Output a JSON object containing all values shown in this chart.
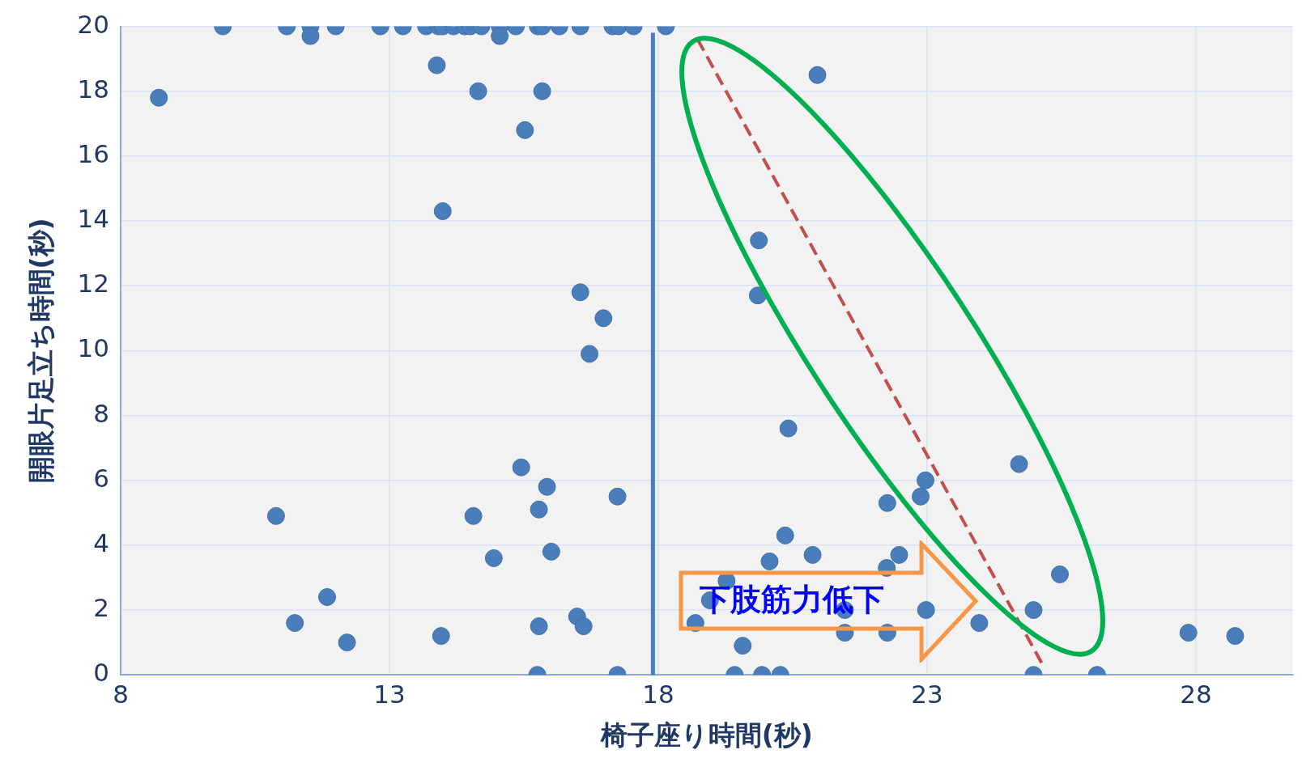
{
  "chart_data": {
    "type": "scatter",
    "xlabel": "椅子座り時間(秒)",
    "ylabel": "開眼片足立ち時間(秒)",
    "annotations": [
      "下肢筋力低下"
    ],
    "xlim": [
      8,
      29.8
    ],
    "xticks": [
      8,
      13,
      18,
      23,
      28
    ],
    "ylim": [
      0,
      20
    ],
    "yticks": [
      0,
      2,
      4,
      6,
      8,
      10,
      12,
      14,
      16,
      18,
      20
    ],
    "grid": true,
    "legend": false,
    "marker": "circle",
    "ref_lines": [
      {
        "axis": "x",
        "value": 17.9,
        "color": "#4a7ebb"
      }
    ],
    "series": [
      {
        "color": "#4a7ebb",
        "x": [
          9.9,
          11.09,
          11.53,
          12.0,
          12.83,
          13.25,
          13.68,
          13.91,
          13.99,
          14.19,
          14.4,
          14.5,
          14.71,
          15.05,
          15.35,
          15.76,
          15.84,
          16.16,
          16.55,
          17.15,
          17.26,
          17.54,
          18.14,
          11.53,
          15.05,
          8.71,
          13.88,
          14.65,
          15.84,
          15.52,
          13.99,
          20.96,
          19.87,
          19.85,
          16.55,
          16.98,
          16.72,
          20.42,
          15.45,
          15.93,
          17.24,
          15.78,
          10.89,
          14.56,
          14.94,
          16.01,
          11.84,
          11.24,
          12.21,
          13.96,
          15.78,
          16.49,
          16.61,
          15.75,
          17.24,
          24.71,
          22.97,
          22.88,
          22.26,
          20.36,
          20.87,
          22.48,
          20.07,
          22.25,
          19.27,
          25.47,
          18.96,
          22.98,
          24.98,
          21.47,
          18.69,
          21.47,
          22.26,
          23.97,
          19.57,
          27.86,
          28.73,
          19.42,
          19.93,
          20.27,
          24.98,
          26.16
        ],
        "values": [
          20,
          20,
          20,
          20,
          20,
          20,
          20,
          20,
          20,
          20,
          20,
          20,
          20,
          20,
          20,
          20,
          20,
          20,
          20,
          20,
          20,
          20,
          20,
          19.7,
          19.7,
          17.8,
          18.8,
          18,
          18,
          16.8,
          14.3,
          18.5,
          13.4,
          11.7,
          11.8,
          11,
          9.9,
          7.6,
          6.4,
          5.8,
          5.5,
          5.1,
          4.9,
          4.9,
          3.6,
          3.8,
          2.4,
          1.6,
          1,
          1.2,
          1.5,
          1.8,
          1.5,
          0,
          0,
          6.5,
          6,
          5.5,
          5.3,
          4.3,
          3.7,
          3.7,
          3.5,
          3.3,
          2.9,
          3.1,
          2.3,
          2,
          2,
          2,
          1.6,
          1.3,
          1.3,
          1.6,
          0.9,
          1.3,
          1.2,
          0,
          0,
          0,
          0,
          0
        ]
      },
      {
        "type": "line",
        "color": "#c0504d",
        "line_style": "dashed",
        "marker": "none",
        "x": [
          18.73,
          25.14
        ],
        "values": [
          19.6,
          0.34
        ]
      }
    ]
  }
}
